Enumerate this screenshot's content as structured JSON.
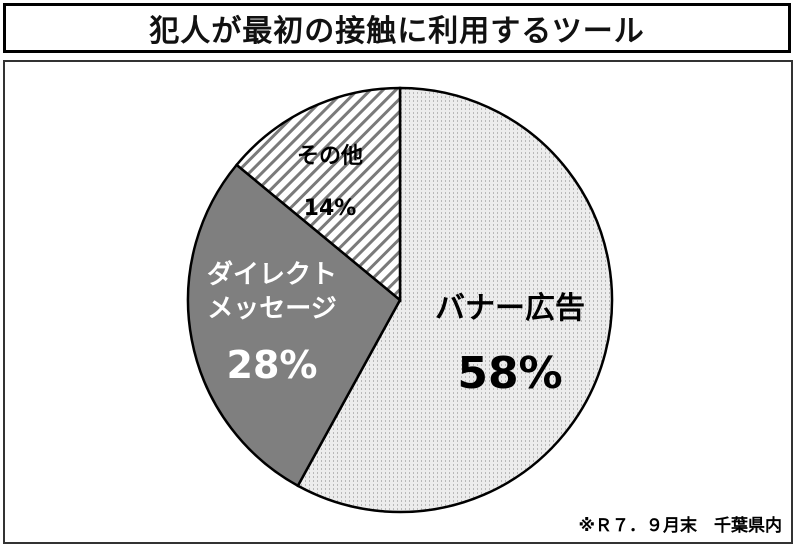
{
  "chart_data": {
    "type": "pie",
    "title": "犯人が最初の接触に利用するツール",
    "start_angle": "12 o'clock, clockwise",
    "slices": [
      {
        "label": "バナー広告",
        "label_lines": [
          "バナー広告"
        ],
        "value": 58,
        "value_label": "58%",
        "fill": "#e4e4e4",
        "pattern": "fine vertical dots",
        "text_color": "#000000"
      },
      {
        "label": "ダイレクトメッセージ",
        "label_lines": [
          "ダイレクト",
          "メッセージ"
        ],
        "value": 28,
        "value_label": "28%",
        "fill": "#7f7f7f",
        "pattern": "solid",
        "text_color": "#ffffff"
      },
      {
        "label": "その他",
        "label_lines": [
          "その他"
        ],
        "value": 14,
        "value_label": "14%",
        "fill": "#ffffff",
        "pattern": "diagonal stripes",
        "text_color": "#000000"
      }
    ],
    "note": "※Ｒ７．９月末　千葉県内"
  }
}
